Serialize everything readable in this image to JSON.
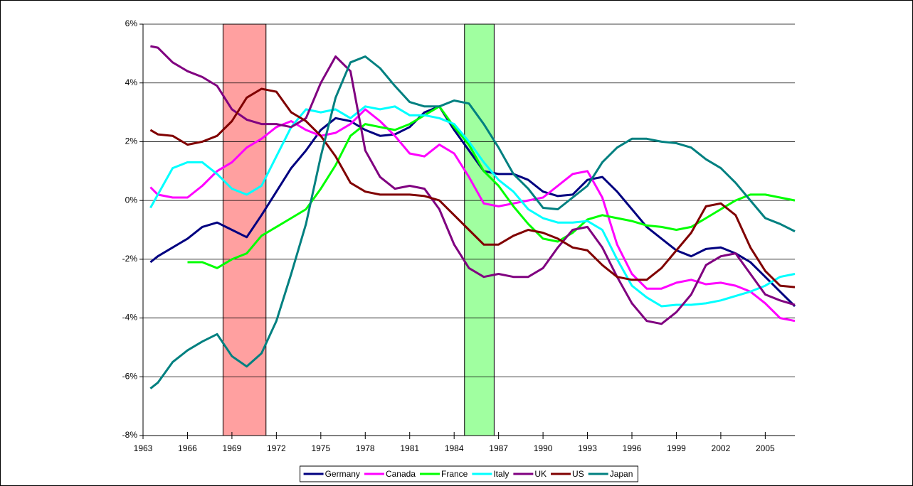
{
  "chart_data": {
    "type": "line",
    "x": [
      1963.5,
      1964,
      1965,
      1966,
      1967,
      1968,
      1969,
      1970,
      1971,
      1972,
      1973,
      1974,
      1975,
      1976,
      1977,
      1978,
      1979,
      1980,
      1981,
      1982,
      1983,
      1984,
      1985,
      1986,
      1987,
      1988,
      1989,
      1990,
      1991,
      1992,
      1993,
      1994,
      1995,
      1996,
      1997,
      1998,
      1999,
      2000,
      2001,
      2002,
      2003,
      2004,
      2005,
      2006,
      2007
    ],
    "series": [
      {
        "name": "Germany",
        "color": "#000080",
        "values": [
          -2.1,
          -1.9,
          -1.6,
          -1.3,
          -0.9,
          -0.75,
          -1.0,
          -1.25,
          -0.5,
          0.3,
          1.1,
          1.7,
          2.4,
          2.8,
          2.7,
          2.4,
          2.2,
          2.25,
          2.5,
          3.0,
          3.2,
          2.4,
          1.7,
          1.0,
          0.9,
          0.9,
          0.7,
          0.3,
          0.15,
          0.2,
          0.7,
          0.8,
          0.3,
          -0.3,
          -0.9,
          -1.3,
          -1.7,
          -1.9,
          -1.65,
          -1.6,
          -1.8,
          -2.1,
          -2.6,
          -3.1,
          -3.6
        ]
      },
      {
        "name": "Canada",
        "color": "#ff00ff",
        "values": [
          0.45,
          0.2,
          0.1,
          0.1,
          0.5,
          1.0,
          1.3,
          1.8,
          2.1,
          2.5,
          2.7,
          2.4,
          2.2,
          2.3,
          2.6,
          3.1,
          2.7,
          2.2,
          1.6,
          1.5,
          1.9,
          1.6,
          0.8,
          -0.1,
          -0.2,
          -0.1,
          0.0,
          0.1,
          0.5,
          0.9,
          1.0,
          0.1,
          -1.5,
          -2.5,
          -3.0,
          -3.0,
          -2.8,
          -2.7,
          -2.85,
          -2.8,
          -2.9,
          -3.1,
          -3.5,
          -4.0,
          -4.1
        ]
      },
      {
        "name": "France",
        "color": "#00ff00",
        "values": [
          null,
          null,
          null,
          -2.1,
          -2.1,
          -2.3,
          -2.0,
          -1.8,
          -1.2,
          -0.9,
          -0.6,
          -0.3,
          0.4,
          1.2,
          2.2,
          2.6,
          2.5,
          2.4,
          2.6,
          2.9,
          3.2,
          2.5,
          1.9,
          1.0,
          0.5,
          -0.2,
          -0.8,
          -1.3,
          -1.4,
          -1.1,
          -0.65,
          -0.5,
          -0.6,
          -0.7,
          -0.85,
          -0.9,
          -1.0,
          -0.9,
          -0.6,
          -0.3,
          0.0,
          0.2,
          0.2,
          0.1,
          0.0
        ]
      },
      {
        "name": "Italy",
        "color": "#00ffff",
        "values": [
          -0.25,
          0.2,
          1.1,
          1.3,
          1.3,
          0.9,
          0.4,
          0.2,
          0.5,
          1.5,
          2.5,
          3.1,
          3.0,
          3.1,
          2.8,
          3.2,
          3.1,
          3.2,
          2.9,
          2.9,
          2.8,
          2.6,
          2.0,
          1.3,
          0.7,
          0.3,
          -0.3,
          -0.6,
          -0.75,
          -0.75,
          -0.7,
          -1.0,
          -2.0,
          -2.9,
          -3.3,
          -3.6,
          -3.55,
          -3.55,
          -3.5,
          -3.4,
          -3.25,
          -3.1,
          -2.9,
          -2.6,
          -2.5
        ]
      },
      {
        "name": "UK",
        "color": "#800080",
        "values": [
          5.25,
          5.2,
          4.7,
          4.4,
          4.2,
          3.9,
          3.1,
          2.75,
          2.6,
          2.6,
          2.5,
          2.8,
          4.0,
          4.9,
          4.4,
          1.7,
          0.8,
          0.4,
          0.5,
          0.4,
          -0.3,
          -1.5,
          -2.3,
          -2.6,
          -2.5,
          -2.6,
          -2.6,
          -2.3,
          -1.6,
          -1.0,
          -0.9,
          -1.6,
          -2.6,
          -3.5,
          -4.1,
          -4.2,
          -3.8,
          -3.2,
          -2.2,
          -1.9,
          -1.8,
          -2.5,
          -3.2,
          -3.4,
          -3.55
        ]
      },
      {
        "name": "US",
        "color": "#800000",
        "values": [
          2.4,
          2.25,
          2.2,
          1.9,
          2.0,
          2.2,
          2.7,
          3.5,
          3.8,
          3.7,
          3.0,
          2.7,
          2.2,
          1.5,
          0.6,
          0.3,
          0.2,
          0.2,
          0.2,
          0.15,
          0.0,
          -0.5,
          -1.0,
          -1.5,
          -1.5,
          -1.2,
          -1.0,
          -1.1,
          -1.3,
          -1.6,
          -1.7,
          -2.2,
          -2.6,
          -2.7,
          -2.7,
          -2.3,
          -1.7,
          -1.1,
          -0.2,
          -0.1,
          -0.5,
          -1.6,
          -2.4,
          -2.9,
          -2.95
        ]
      },
      {
        "name": "Japan",
        "color": "#008080",
        "values": [
          -6.4,
          -6.2,
          -5.5,
          -5.1,
          -4.8,
          -4.55,
          -5.3,
          -5.65,
          -5.2,
          -4.1,
          -2.5,
          -0.8,
          1.5,
          3.5,
          4.7,
          4.9,
          4.5,
          3.9,
          3.35,
          3.2,
          3.2,
          3.4,
          3.3,
          2.6,
          1.8,
          0.9,
          0.4,
          -0.25,
          -0.3,
          0.1,
          0.5,
          1.3,
          1.8,
          2.1,
          2.1,
          2.0,
          1.95,
          1.8,
          1.4,
          1.1,
          0.6,
          0.0,
          -0.6,
          -0.8,
          -1.05
        ]
      }
    ],
    "shaded_regions": [
      {
        "x": [
          1968.4,
          1971.3
        ],
        "color": "#ff8080"
      },
      {
        "x": [
          1984.7,
          1986.7
        ],
        "color": "#80ff80"
      }
    ],
    "xlim": [
      1963,
      2007
    ],
    "xticks": [
      1963,
      1966,
      1969,
      1972,
      1975,
      1978,
      1981,
      1984,
      1987,
      1990,
      1993,
      1996,
      1999,
      2002,
      2005
    ],
    "ylim": [
      -8,
      6
    ],
    "yticks": [
      {
        "value": -8,
        "label": "-8%"
      },
      {
        "value": -6,
        "label": "-6%"
      },
      {
        "value": -4,
        "label": "-4%"
      },
      {
        "value": -2,
        "label": "-2%"
      },
      {
        "value": 0,
        "label": "0%"
      },
      {
        "value": 2,
        "label": "2%"
      },
      {
        "value": 4,
        "label": "4%"
      },
      {
        "value": 6,
        "label": "6%"
      }
    ],
    "grid": true,
    "legend": "bottom"
  }
}
